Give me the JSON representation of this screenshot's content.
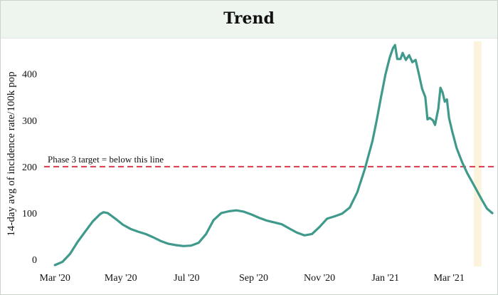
{
  "header": {
    "title": "Trend"
  },
  "chart_data": {
    "type": "line",
    "title": "Trend",
    "xlabel": "",
    "ylabel": "14-day avg of incidence rate/100k pop",
    "xlim": [
      "2020-02-20",
      "2021-04-12"
    ],
    "ylim": [
      -15,
      470
    ],
    "y_ticks": [
      0,
      100,
      200,
      300,
      400
    ],
    "x_ticks": [
      {
        "date": "2020-03-01",
        "label": "Mar '20"
      },
      {
        "date": "2020-05-01",
        "label": "May '20"
      },
      {
        "date": "2020-07-01",
        "label": "Jul '20"
      },
      {
        "date": "2020-09-01",
        "label": "Sep '20"
      },
      {
        "date": "2020-11-01",
        "label": "Nov '20"
      },
      {
        "date": "2021-01-01",
        "label": "Jan '21"
      },
      {
        "date": "2021-03-01",
        "label": "Mar '21"
      }
    ],
    "grid": false,
    "line_color": "#3f9a8c",
    "threshold": {
      "value": 200,
      "label": "Phase 3 target =  below this line",
      "color": "#d9394a"
    },
    "highlight_band": {
      "from": "2021-03-24",
      "to": "2021-03-31",
      "color": "#fbf3dc"
    },
    "series": [
      {
        "name": "",
        "points": [
          [
            "2020-03-01",
            -12
          ],
          [
            "2020-03-08",
            -5
          ],
          [
            "2020-03-15",
            12
          ],
          [
            "2020-03-22",
            38
          ],
          [
            "2020-03-29",
            60
          ],
          [
            "2020-04-05",
            82
          ],
          [
            "2020-04-12",
            98
          ],
          [
            "2020-04-15",
            102
          ],
          [
            "2020-04-19",
            100
          ],
          [
            "2020-04-26",
            88
          ],
          [
            "2020-05-03",
            75
          ],
          [
            "2020-05-10",
            66
          ],
          [
            "2020-05-17",
            60
          ],
          [
            "2020-05-24",
            55
          ],
          [
            "2020-05-31",
            48
          ],
          [
            "2020-06-07",
            40
          ],
          [
            "2020-06-14",
            34
          ],
          [
            "2020-06-21",
            31
          ],
          [
            "2020-06-28",
            29
          ],
          [
            "2020-07-05",
            30
          ],
          [
            "2020-07-12",
            36
          ],
          [
            "2020-07-19",
            55
          ],
          [
            "2020-07-26",
            85
          ],
          [
            "2020-08-02",
            100
          ],
          [
            "2020-08-09",
            104
          ],
          [
            "2020-08-16",
            106
          ],
          [
            "2020-08-23",
            103
          ],
          [
            "2020-08-30",
            97
          ],
          [
            "2020-09-06",
            90
          ],
          [
            "2020-09-13",
            84
          ],
          [
            "2020-09-20",
            80
          ],
          [
            "2020-09-27",
            76
          ],
          [
            "2020-10-04",
            67
          ],
          [
            "2020-10-11",
            58
          ],
          [
            "2020-10-18",
            52
          ],
          [
            "2020-10-25",
            55
          ],
          [
            "2020-11-01",
            70
          ],
          [
            "2020-11-08",
            88
          ],
          [
            "2020-11-15",
            93
          ],
          [
            "2020-11-22",
            99
          ],
          [
            "2020-11-29",
            112
          ],
          [
            "2020-12-06",
            145
          ],
          [
            "2020-12-13",
            195
          ],
          [
            "2020-12-20",
            255
          ],
          [
            "2020-12-24",
            300
          ],
          [
            "2020-12-28",
            350
          ],
          [
            "2021-01-01",
            398
          ],
          [
            "2021-01-05",
            435
          ],
          [
            "2021-01-08",
            455
          ],
          [
            "2021-01-10",
            462
          ],
          [
            "2021-01-12",
            432
          ],
          [
            "2021-01-15",
            432
          ],
          [
            "2021-01-17",
            445
          ],
          [
            "2021-01-20",
            430
          ],
          [
            "2021-01-23",
            440
          ],
          [
            "2021-01-26",
            425
          ],
          [
            "2021-01-29",
            430
          ],
          [
            "2021-02-01",
            400
          ],
          [
            "2021-02-04",
            368
          ],
          [
            "2021-02-07",
            350
          ],
          [
            "2021-02-09",
            302
          ],
          [
            "2021-02-11",
            305
          ],
          [
            "2021-02-14",
            300
          ],
          [
            "2021-02-16",
            290
          ],
          [
            "2021-02-19",
            325
          ],
          [
            "2021-02-21",
            370
          ],
          [
            "2021-02-23",
            360
          ],
          [
            "2021-02-25",
            340
          ],
          [
            "2021-02-27",
            345
          ],
          [
            "2021-03-01",
            305
          ],
          [
            "2021-03-04",
            275
          ],
          [
            "2021-03-08",
            240
          ],
          [
            "2021-03-13",
            210
          ],
          [
            "2021-03-18",
            185
          ],
          [
            "2021-03-24",
            160
          ],
          [
            "2021-03-31",
            130
          ],
          [
            "2021-04-05",
            110
          ],
          [
            "2021-04-10",
            100
          ]
        ]
      }
    ]
  }
}
